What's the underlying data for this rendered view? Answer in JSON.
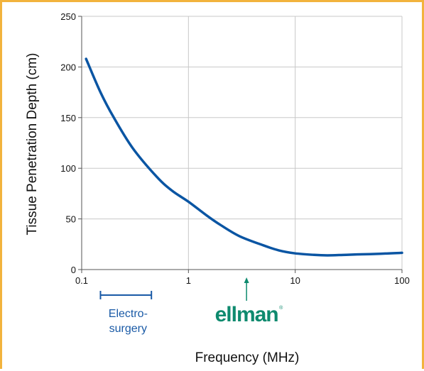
{
  "chart_data": {
    "type": "line",
    "xscale": "log",
    "xlim": [
      0.1,
      100
    ],
    "ylim": [
      0,
      250
    ],
    "xticks": [
      "0.1",
      "1",
      "10",
      "100"
    ],
    "yticks": [
      "0",
      "50",
      "100",
      "150",
      "200",
      "250"
    ],
    "xlabel": "Frequency (MHz)",
    "ylabel": "Tissue Penetration Depth (cm)",
    "grid": true,
    "series": [
      {
        "x": [
          0.11,
          0.15,
          0.2,
          0.3,
          0.5,
          0.7,
          1,
          1.5,
          2,
          3,
          5,
          7,
          10,
          15,
          20,
          30,
          50,
          70,
          100
        ],
        "y": [
          208,
          175,
          150,
          120,
          92,
          78,
          67,
          53,
          44,
          33,
          24,
          19,
          16,
          14.5,
          14,
          14.6,
          15.3,
          15.8,
          16.5
        ],
        "color": "#0a55a3"
      }
    ],
    "annotations": {
      "electrosurgery": {
        "label_line1": "Electro-",
        "label_line2": "surgery",
        "x_from": 0.15,
        "x_to": 0.45
      },
      "ellman": {
        "brand": "ellman",
        "reg_mark": "®",
        "x": 3.5
      }
    }
  }
}
